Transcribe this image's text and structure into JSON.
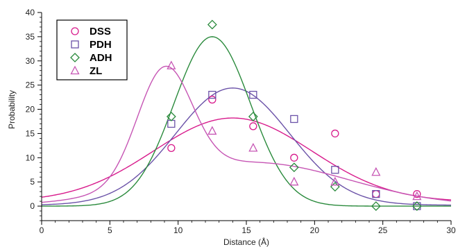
{
  "chart_data": {
    "type": "scatter",
    "xlabel": "Distance (Å)",
    "ylabel": "Probability",
    "xlim": [
      0,
      30
    ],
    "ylim": [
      -3,
      40
    ],
    "x_ticks": [
      0,
      5,
      10,
      15,
      20,
      25,
      30
    ],
    "y_ticks": [
      0,
      5,
      10,
      15,
      20,
      25,
      30,
      35,
      40
    ],
    "x_minor_step": 1,
    "y_minor_step": 1,
    "grid": false,
    "legend_position": "top-left",
    "series": [
      {
        "name": "DSS",
        "marker": "circle",
        "color": "#d81b8c",
        "x": [
          9.5,
          12.5,
          15.5,
          18.5,
          21.5,
          24.5,
          27.5
        ],
        "y": [
          12,
          22,
          16.5,
          10,
          15,
          2.5,
          2.5
        ],
        "fit": {
          "type": "gaussian",
          "amp": 17.3,
          "mean": 14.0,
          "sigma": 5.8,
          "offset": 0.9
        }
      },
      {
        "name": "PDH",
        "marker": "square",
        "color": "#6b52a8",
        "x": [
          9.5,
          12.5,
          15.5,
          18.5,
          21.5,
          24.5,
          27.5
        ],
        "y": [
          17,
          23,
          23,
          18,
          7.5,
          2.5,
          0
        ],
        "fit": {
          "type": "gaussian",
          "amp": 24.2,
          "mean": 14.0,
          "sigma": 4.2,
          "offset": 0.2
        }
      },
      {
        "name": "ADH",
        "marker": "diamond",
        "color": "#2a8a3c",
        "x": [
          9.5,
          12.5,
          15.5,
          18.5,
          21.5,
          24.5,
          27.5
        ],
        "y": [
          18.5,
          37.5,
          18.5,
          8,
          4,
          0,
          0
        ],
        "fit": {
          "type": "gaussian",
          "amp": 35.0,
          "mean": 12.5,
          "sigma": 2.8,
          "offset": 0.0
        }
      },
      {
        "name": "ZL",
        "marker": "triangle",
        "color": "#c655b4",
        "x": [
          9.5,
          12.5,
          15.5,
          18.5,
          21.5,
          24.5,
          27.5
        ],
        "y": [
          29,
          15.5,
          12,
          5,
          5,
          7,
          2
        ],
        "fit": {
          "type": "double-gaussian",
          "amp1": 23.0,
          "mean1": 9.0,
          "sigma1": 2.0,
          "amp2": 9.0,
          "mean2": 15.5,
          "sigma2": 7.0,
          "offset": 0.0
        }
      }
    ]
  }
}
